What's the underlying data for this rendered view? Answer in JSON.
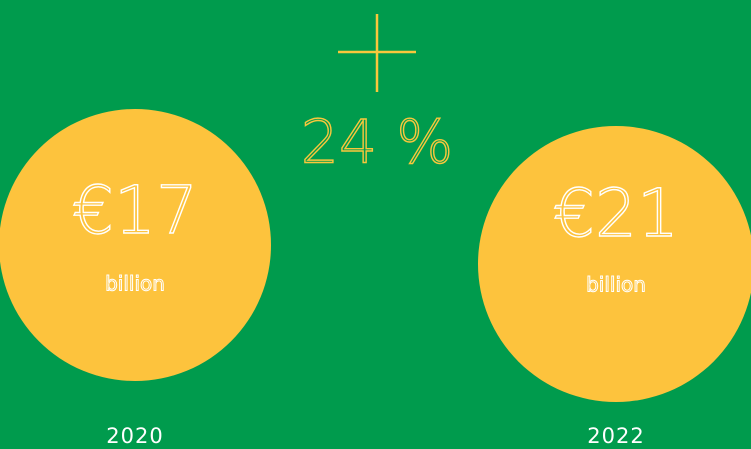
{
  "growth": "24 %",
  "items": [
    {
      "amount": "€17",
      "unit": "billion",
      "year": "2020"
    },
    {
      "amount": "€21",
      "unit": "billion",
      "year": "2022"
    }
  ]
}
